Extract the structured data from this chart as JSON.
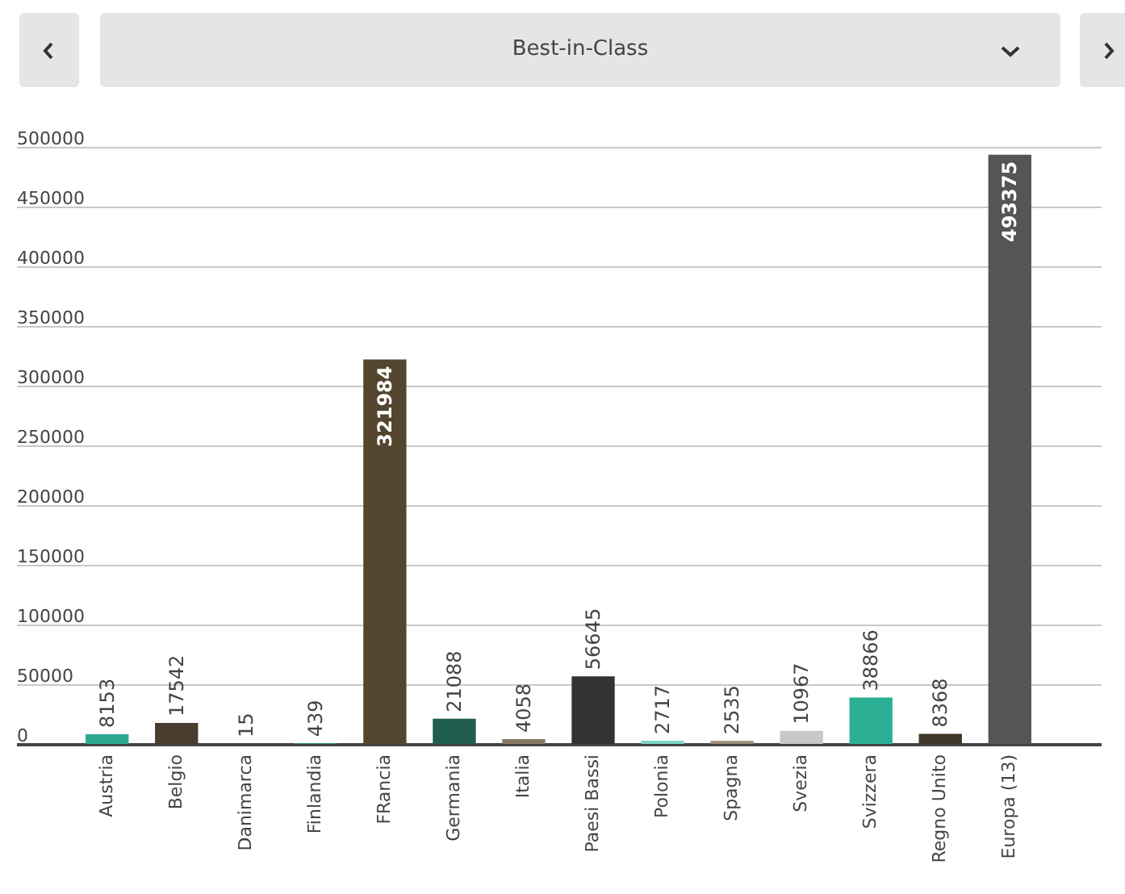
{
  "chart_data": {
    "type": "bar",
    "title": "Best-in-Class",
    "categories": [
      "Austria",
      "Belgio",
      "Danimarca",
      "Finlandia",
      "FRancia",
      "Germania",
      "Italia",
      "Paesi Bassi",
      "Polonia",
      "Spagna",
      "Svezia",
      "Svizzera",
      "Regno Unito",
      "Europa (13)"
    ],
    "values": [
      8153,
      17542,
      15,
      439,
      321984,
      21088,
      4058,
      56645,
      2717,
      2535,
      10967,
      38866,
      8368,
      493375
    ],
    "colors": [
      "#2aaa91",
      "#483c2c",
      "#2aaa91",
      "#2aaa91",
      "#54452f",
      "#1f5e4f",
      "#8a7a62",
      "#333333",
      "#7fd6c4",
      "#9a8b75",
      "#c8c8c8",
      "#2bb095",
      "#3f3628",
      "#555555"
    ],
    "ylim": [
      0,
      500000
    ],
    "yticks": [
      0,
      50000,
      100000,
      150000,
      200000,
      250000,
      300000,
      350000,
      400000,
      450000,
      500000
    ],
    "grid": "y",
    "data_labels": true,
    "legend": false
  }
}
